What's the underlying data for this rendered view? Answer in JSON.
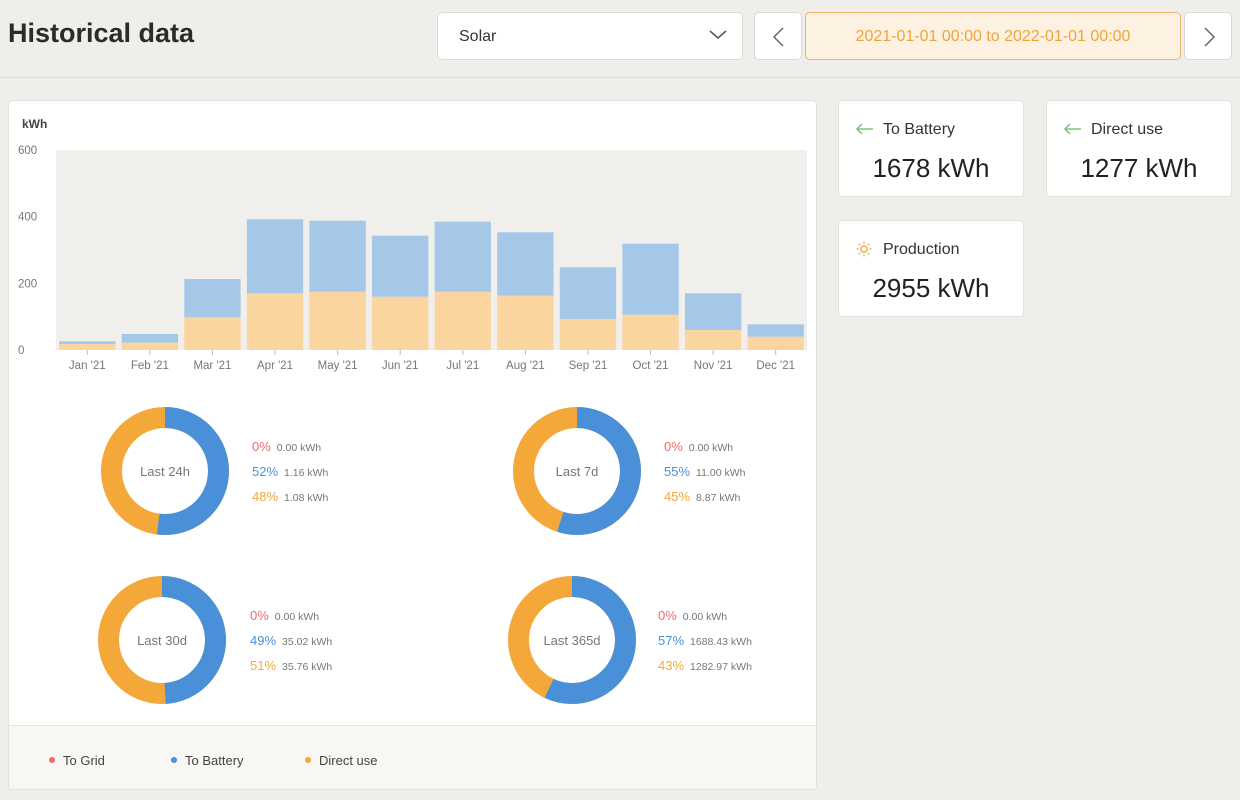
{
  "page": {
    "title": "Historical data"
  },
  "filter": {
    "source": "Solar",
    "range": "2021-01-01 00:00 to 2022-01-01 00:00"
  },
  "stats": [
    {
      "label": "To Battery",
      "value": "1678 kWh",
      "icon": "arrow-left-icon"
    },
    {
      "label": "Direct use",
      "value": "1277 kWh",
      "icon": "arrow-left-icon"
    },
    {
      "label": "Production",
      "value": "2955 kWh",
      "icon": "sun-icon"
    }
  ],
  "colors": {
    "to_grid": "#ef6b6b",
    "to_battery": "#4a90d9",
    "direct_use": "#f5a83a",
    "bar_battery": "#a6c8e8",
    "bar_direct": "#fbd5a0"
  },
  "chart_data": {
    "type": "bar",
    "stacked": true,
    "ylabel": "kWh",
    "ylim": [
      0,
      600
    ],
    "yticks": [
      0,
      200,
      400,
      600
    ],
    "categories": [
      "Jan '21",
      "Feb '21",
      "Mar '21",
      "Apr '21",
      "May '21",
      "Jun '21",
      "Jul '21",
      "Aug '21",
      "Sep '21",
      "Oct '21",
      "Nov '21",
      "Dec '21"
    ],
    "series": [
      {
        "name": "Direct use",
        "values": [
          18,
          22,
          98,
          170,
          175,
          160,
          175,
          163,
          93,
          106,
          60,
          40
        ]
      },
      {
        "name": "To Battery",
        "values": [
          8,
          26,
          115,
          222,
          213,
          183,
          210,
          190,
          155,
          213,
          110,
          37
        ]
      }
    ],
    "grid": false
  },
  "donuts": [
    {
      "center": "Last 24h",
      "rows": [
        {
          "pct": "0%",
          "kwh": "0.00 kWh"
        },
        {
          "pct": "52%",
          "kwh": "1.16 kWh"
        },
        {
          "pct": "48%",
          "kwh": "1.08 kWh"
        }
      ],
      "battery_share": 0.52
    },
    {
      "center": "Last 7d",
      "rows": [
        {
          "pct": "0%",
          "kwh": "0.00 kWh"
        },
        {
          "pct": "55%",
          "kwh": "11.00 kWh"
        },
        {
          "pct": "45%",
          "kwh": "8.87 kWh"
        }
      ],
      "battery_share": 0.55
    },
    {
      "center": "Last 30d",
      "rows": [
        {
          "pct": "0%",
          "kwh": "0.00 kWh"
        },
        {
          "pct": "49%",
          "kwh": "35.02 kWh"
        },
        {
          "pct": "51%",
          "kwh": "35.76 kWh"
        }
      ],
      "battery_share": 0.49
    },
    {
      "center": "Last 365d",
      "rows": [
        {
          "pct": "0%",
          "kwh": "0.00 kWh"
        },
        {
          "pct": "57%",
          "kwh": "1688.43 kWh"
        },
        {
          "pct": "43%",
          "kwh": "1282.97 kWh"
        }
      ],
      "battery_share": 0.57
    }
  ],
  "legend": [
    {
      "label": "To Grid",
      "color": "#ef6b6b"
    },
    {
      "label": "To Battery",
      "color": "#4a90d9"
    },
    {
      "label": "Direct use",
      "color": "#f5a83a"
    }
  ]
}
